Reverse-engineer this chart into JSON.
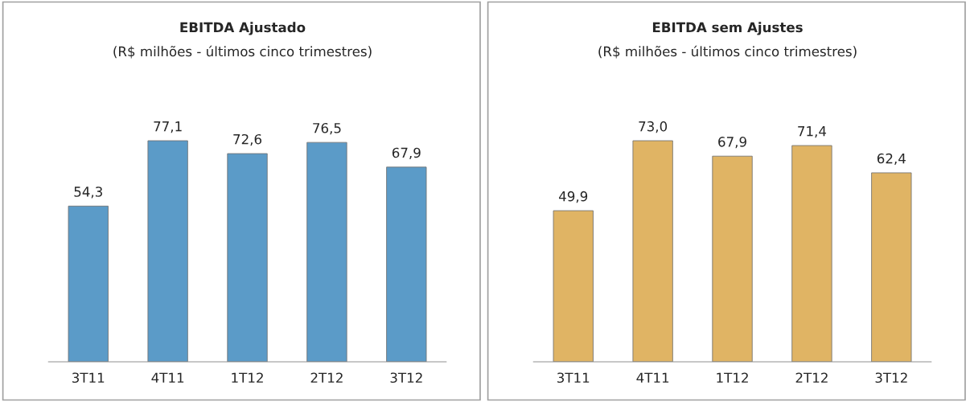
{
  "chart_data": [
    {
      "type": "bar",
      "title": "EBITDA Ajustado",
      "subtitle": "(R$ milhões - últimos cinco trimestres)",
      "categories": [
        "3T11",
        "4T11",
        "1T12",
        "2T12",
        "3T12"
      ],
      "values": [
        54.3,
        77.1,
        72.6,
        76.5,
        67.9
      ],
      "color": "#5b9bc8",
      "value_labels": [
        "54,3",
        "77,1",
        "72,6",
        "76,5",
        "67,9"
      ],
      "grid": false,
      "legend": false
    },
    {
      "type": "bar",
      "title": "EBITDA sem Ajustes",
      "subtitle": "(R$ milhões - últimos cinco trimestres)",
      "categories": [
        "3T11",
        "4T11",
        "1T12",
        "2T12",
        "3T12"
      ],
      "values": [
        49.9,
        73.0,
        67.9,
        71.4,
        62.4
      ],
      "color": "#e0b464",
      "value_labels": [
        "49,9",
        "73,0",
        "67,9",
        "71,4",
        "62,4"
      ],
      "grid": false,
      "legend": false
    }
  ]
}
